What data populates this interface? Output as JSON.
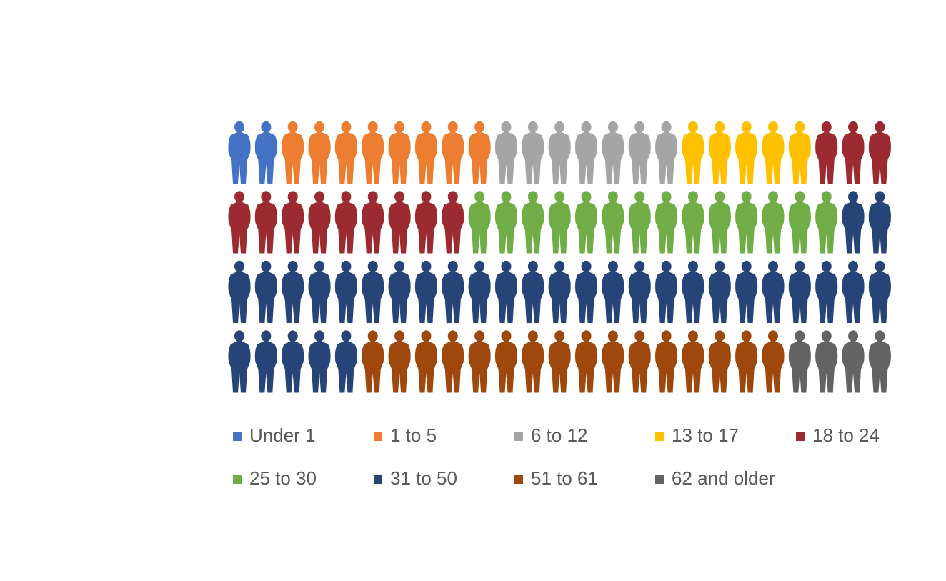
{
  "chart_data": {
    "type": "pictograph",
    "series": [
      {
        "name": "Under 1",
        "color": "#4472c4",
        "value": 2
      },
      {
        "name": "1 to 5",
        "color": "#ed7d31",
        "value": 8
      },
      {
        "name": "6 to 12",
        "color": "#a5a5a5",
        "value": 7
      },
      {
        "name": "13 to 17",
        "color": "#ffc000",
        "value": 5
      },
      {
        "name": "18 to 24",
        "color": "#9b2b30",
        "value": 12
      },
      {
        "name": "25 to 30",
        "color": "#70ad47",
        "value": 14
      },
      {
        "name": "31 to 50",
        "color": "#264478",
        "value": 32
      },
      {
        "name": "51 to 61",
        "color": "#9e480e",
        "value": 16
      },
      {
        "name": "62 and older",
        "color": "#636363",
        "value": 4
      }
    ]
  }
}
